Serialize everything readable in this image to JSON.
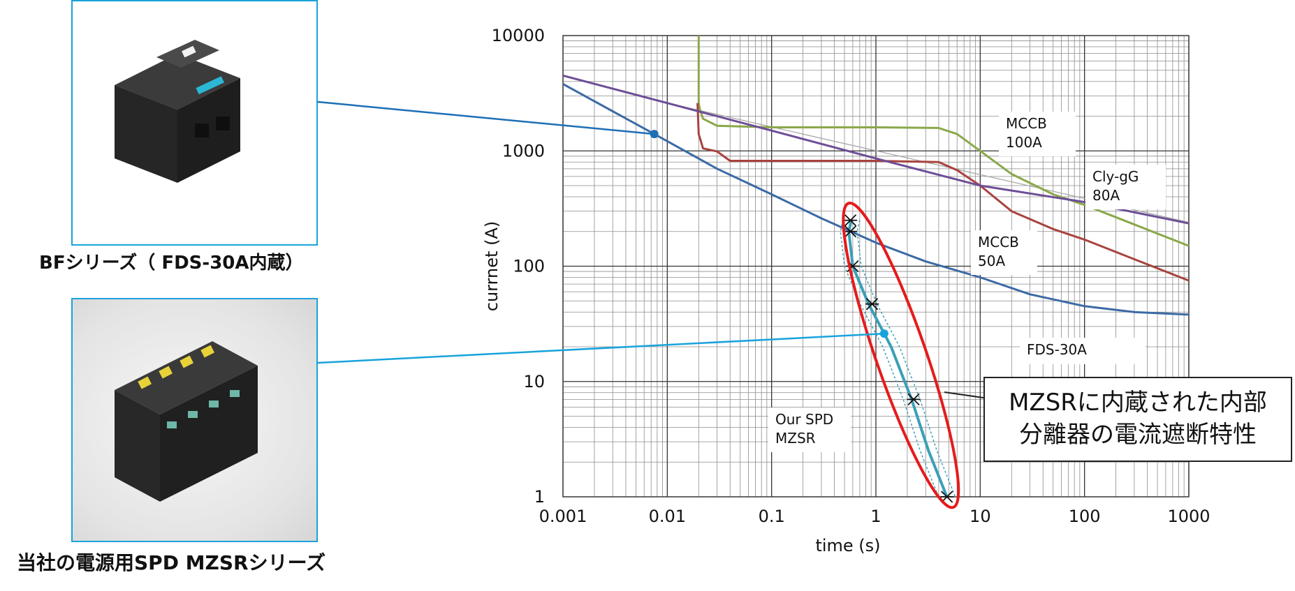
{
  "captions": {
    "bf": "BFシリーズ（ FDS-30A内蔵）",
    "mzsr": "当社の電源用SPD MZSRシリーズ"
  },
  "callout": {
    "line1": "MZSRに内蔵された内部",
    "line2": "分離器の電流遮断特性"
  },
  "colors": {
    "frame": "#1aa3d8",
    "fds": "#3c6aa5",
    "mzsr": "#3aa0b8",
    "mccb100": "#8aa84a",
    "mccb50": "#a8433e",
    "clygg": "#6e4e96",
    "ellipse": "#e51b1b",
    "pointer_bf": "#1c6fb5",
    "pointer_mzsr": "#18a3dc"
  },
  "chart_data": {
    "type": "line",
    "xscale": "log",
    "yscale": "log",
    "xlim": [
      0.001,
      1000
    ],
    "ylim": [
      1,
      10000
    ],
    "xlabel": "time (s)",
    "ylabel": "currnet (A)",
    "x_ticks": [
      "0.001",
      "0.01",
      "0.1",
      "1",
      "10",
      "100",
      "1000"
    ],
    "y_ticks": [
      "1",
      "10",
      "100",
      "1000",
      "10000"
    ],
    "grid": true,
    "series": [
      {
        "name": "FDS-30A",
        "label_lines": [
          "FDS-30A"
        ],
        "color": "#3c6aa5",
        "points": [
          [
            0.001,
            3800
          ],
          [
            0.0075,
            1400
          ],
          [
            0.03,
            700
          ],
          [
            0.1,
            420
          ],
          [
            0.3,
            260
          ],
          [
            1,
            160
          ],
          [
            3,
            110
          ],
          [
            10,
            80
          ],
          [
            30,
            57
          ],
          [
            100,
            45
          ],
          [
            300,
            40
          ],
          [
            1000,
            38
          ]
        ]
      },
      {
        "name": "MCCB 100A",
        "label_lines": [
          "MCCB",
          "100A"
        ],
        "color": "#8aa84a",
        "points": [
          [
            0.02,
            10000
          ],
          [
            0.02,
            2600
          ],
          [
            0.0205,
            2300
          ],
          [
            0.022,
            1900
          ],
          [
            0.03,
            1650
          ],
          [
            0.1,
            1600
          ],
          [
            1,
            1600
          ],
          [
            4,
            1580
          ],
          [
            6,
            1400
          ],
          [
            10,
            1000
          ],
          [
            20,
            630
          ],
          [
            50,
            420
          ],
          [
            100,
            340
          ],
          [
            300,
            230
          ],
          [
            1000,
            150
          ]
        ]
      },
      {
        "name": "MCCB 50A",
        "label_lines": [
          "MCCB",
          "50A"
        ],
        "color": "#a8433e",
        "points": [
          [
            0.0195,
            2600
          ],
          [
            0.02,
            1400
          ],
          [
            0.022,
            1050
          ],
          [
            0.03,
            990
          ],
          [
            0.04,
            820
          ],
          [
            0.1,
            820
          ],
          [
            1,
            820
          ],
          [
            4,
            800
          ],
          [
            6,
            680
          ],
          [
            10,
            500
          ],
          [
            20,
            300
          ],
          [
            50,
            210
          ],
          [
            100,
            170
          ],
          [
            300,
            115
          ],
          [
            1000,
            75
          ]
        ]
      },
      {
        "name": "Cly-gG 80A",
        "label_lines": [
          "Cly-gG",
          "80A"
        ],
        "color": "#6e4e96",
        "points": [
          [
            0.001,
            4500
          ],
          [
            0.01,
            2600
          ],
          [
            0.1,
            1500
          ],
          [
            1,
            860
          ],
          [
            10,
            500
          ],
          [
            100,
            360
          ],
          [
            1000,
            235
          ]
        ]
      },
      {
        "name": "Our SPD MZSR",
        "label_lines": [
          "Our SPD",
          "MZSR"
        ],
        "color": "#3aa0b8",
        "points": [
          [
            0.58,
            250
          ],
          [
            0.55,
            200
          ],
          [
            0.6,
            100
          ],
          [
            0.85,
            47
          ],
          [
            1.4,
            20
          ],
          [
            2.2,
            7
          ],
          [
            3.2,
            2.5
          ],
          [
            4.8,
            1
          ]
        ],
        "measured_points": [
          [
            0.57,
            250
          ],
          [
            0.57,
            200
          ],
          [
            0.6,
            100
          ],
          [
            0.92,
            47
          ],
          [
            2.3,
            7
          ],
          [
            4.8,
            1
          ]
        ]
      }
    ],
    "highlight_point": [
      1.2,
      26
    ]
  }
}
